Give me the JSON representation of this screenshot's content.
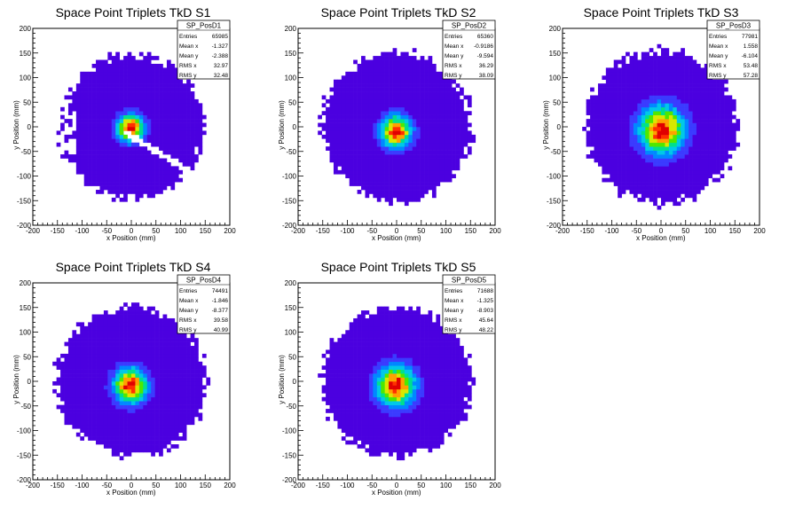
{
  "chart_data": [
    {
      "type": "heatmap",
      "title": "Space Point Triplets TkD S1",
      "xlabel": "x Position (mm)",
      "ylabel": "y Position (mm)",
      "xlim": [
        -200,
        200
      ],
      "ylim": [
        -200,
        200
      ],
      "x_ticks": [
        "-200",
        "-150",
        "-100",
        "-50",
        "0",
        "50",
        "100",
        "150",
        "200"
      ],
      "y_ticks": [
        "200",
        "150",
        "100",
        "50",
        "0",
        "-50",
        "-100",
        "-150",
        "-200"
      ],
      "stats": {
        "name": "SP_PosD1",
        "rows": [
          {
            "label": "Entries",
            "value": "65985"
          },
          {
            "label": "Mean x",
            "value": "-1.327"
          },
          {
            "label": "Mean y",
            "value": "-2.388"
          },
          {
            "label": "RMS x",
            "value": "32.97"
          },
          {
            "label": "RMS y",
            "value": "32.48"
          }
        ]
      },
      "distribution": {
        "mean_x": -1.327,
        "mean_y": -2.388,
        "rms_x": 32.97,
        "rms_y": 32.48,
        "radius": 150,
        "has_gap": true
      }
    },
    {
      "type": "heatmap",
      "title": "Space Point Triplets TkD S2",
      "xlabel": "x Position (mm)",
      "ylabel": "y Position (mm)",
      "xlim": [
        -200,
        200
      ],
      "ylim": [
        -200,
        200
      ],
      "x_ticks": [
        "-200",
        "-150",
        "-100",
        "-50",
        "0",
        "50",
        "100",
        "150",
        "200"
      ],
      "y_ticks": [
        "200",
        "150",
        "100",
        "50",
        "0",
        "-50",
        "-100",
        "-150",
        "-200"
      ],
      "stats": {
        "name": "SP_PosD2",
        "rows": [
          {
            "label": "Entries",
            "value": "65360"
          },
          {
            "label": "Mean x",
            "value": "-0.9186"
          },
          {
            "label": "Mean y",
            "value": "-9.594"
          },
          {
            "label": "RMS x",
            "value": "36.29"
          },
          {
            "label": "RMS y",
            "value": "38.09"
          }
        ]
      },
      "distribution": {
        "mean_x": -0.9186,
        "mean_y": -9.594,
        "rms_x": 36.29,
        "rms_y": 38.09,
        "radius": 155,
        "has_gap": false
      }
    },
    {
      "type": "heatmap",
      "title": "Space Point Triplets TkD S3",
      "xlabel": "x Position (mm)",
      "ylabel": "y Position (mm)",
      "xlim": [
        -200,
        200
      ],
      "ylim": [
        -200,
        200
      ],
      "x_ticks": [
        "-200",
        "-150",
        "-100",
        "-50",
        "0",
        "50",
        "100",
        "150",
        "200"
      ],
      "y_ticks": [
        "200",
        "150",
        "100",
        "50",
        "0",
        "-50",
        "-100",
        "-150",
        "-200"
      ],
      "stats": {
        "name": "SP_PosD3",
        "rows": [
          {
            "label": "Entries",
            "value": "77981"
          },
          {
            "label": "Mean x",
            "value": "1.558"
          },
          {
            "label": "Mean y",
            "value": "-6.104"
          },
          {
            "label": "RMS x",
            "value": "53.48"
          },
          {
            "label": "RMS y",
            "value": "57.28"
          }
        ]
      },
      "distribution": {
        "mean_x": 1.558,
        "mean_y": -6.104,
        "rms_x": 53.48,
        "rms_y": 57.28,
        "radius": 158,
        "has_gap": false
      }
    },
    {
      "type": "heatmap",
      "title": "Space Point Triplets TkD S4",
      "xlabel": "x Position (mm)",
      "ylabel": "y Position (mm)",
      "xlim": [
        -200,
        200
      ],
      "ylim": [
        -200,
        200
      ],
      "x_ticks": [
        "-200",
        "-150",
        "-100",
        "-50",
        "0",
        "50",
        "100",
        "150",
        "200"
      ],
      "y_ticks": [
        "200",
        "150",
        "100",
        "50",
        "0",
        "-50",
        "-100",
        "-150",
        "-200"
      ],
      "stats": {
        "name": "SP_PosD4",
        "rows": [
          {
            "label": "Entries",
            "value": "74491"
          },
          {
            "label": "Mean x",
            "value": "-1.846"
          },
          {
            "label": "Mean y",
            "value": "-8.377"
          },
          {
            "label": "RMS x",
            "value": "39.58"
          },
          {
            "label": "RMS y",
            "value": "40.99"
          }
        ]
      },
      "distribution": {
        "mean_x": -1.846,
        "mean_y": -8.377,
        "rms_x": 39.58,
        "rms_y": 40.99,
        "radius": 155,
        "has_gap": false
      }
    },
    {
      "type": "heatmap",
      "title": "Space Point Triplets TkD S5",
      "xlabel": "x Position (mm)",
      "ylabel": "y Position (mm)",
      "xlim": [
        -200,
        200
      ],
      "ylim": [
        -200,
        200
      ],
      "x_ticks": [
        "-200",
        "-150",
        "-100",
        "-50",
        "0",
        "50",
        "100",
        "150",
        "200"
      ],
      "y_ticks": [
        "200",
        "150",
        "100",
        "50",
        "0",
        "-50",
        "-100",
        "-150",
        "-200"
      ],
      "stats": {
        "name": "SP_PosD5",
        "rows": [
          {
            "label": "Entries",
            "value": "71688"
          },
          {
            "label": "Mean x",
            "value": "-1.325"
          },
          {
            "label": "Mean y",
            "value": "-8.903"
          },
          {
            "label": "RMS x",
            "value": "45.64"
          },
          {
            "label": "RMS y",
            "value": "48.22"
          }
        ]
      },
      "distribution": {
        "mean_x": -1.325,
        "mean_y": -8.903,
        "rms_x": 45.64,
        "rms_y": 48.22,
        "radius": 155,
        "has_gap": false
      }
    }
  ],
  "colors": {
    "palette": [
      "#4b00e0",
      "#3b3bff",
      "#0088ff",
      "#00c8e8",
      "#00e08c",
      "#4ee800",
      "#d8e800",
      "#ffa000",
      "#ff3000",
      "#e00000"
    ],
    "axis": "#000000",
    "stats_border": "#000000"
  }
}
